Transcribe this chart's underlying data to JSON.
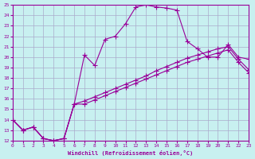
{
  "xlabel": "Windchill (Refroidissement éolien,°C)",
  "bg_color": "#c8f0f0",
  "grid_color": "#aaaacc",
  "line_color": "#990099",
  "xlim": [
    0,
    23
  ],
  "ylim": [
    12,
    25
  ],
  "xticks": [
    0,
    1,
    2,
    3,
    4,
    5,
    6,
    7,
    8,
    9,
    10,
    11,
    12,
    13,
    14,
    15,
    16,
    17,
    18,
    19,
    20,
    21,
    22,
    23
  ],
  "yticks": [
    12,
    13,
    14,
    15,
    16,
    17,
    18,
    19,
    20,
    21,
    22,
    23,
    24,
    25
  ],
  "curve1_x": [
    0,
    1,
    2,
    3,
    4,
    5,
    6,
    7,
    8,
    9,
    10,
    11,
    12,
    13,
    14,
    15,
    16,
    17,
    18,
    19,
    20,
    21,
    22,
    23
  ],
  "curve1_y": [
    14,
    13,
    13.3,
    12.2,
    12.0,
    12.2,
    15.5,
    20.2,
    19.2,
    21.7,
    22.0,
    23.2,
    24.8,
    25.0,
    24.8,
    24.7,
    24.5,
    21.5,
    20.8,
    20.0,
    20.0,
    21.2,
    20.0,
    19.8
  ],
  "curve2_x": [
    0,
    1,
    2,
    3,
    4,
    5,
    6,
    7,
    8,
    9,
    10,
    11,
    12,
    13,
    14,
    15,
    16,
    17,
    18,
    19,
    20,
    21,
    22,
    23
  ],
  "curve2_y": [
    14,
    13,
    13.3,
    12.2,
    12.0,
    12.2,
    15.5,
    15.8,
    16.2,
    16.6,
    17.0,
    17.4,
    17.8,
    18.2,
    18.7,
    19.1,
    19.5,
    19.9,
    20.2,
    20.5,
    20.8,
    21.0,
    19.8,
    18.8
  ],
  "curve3_x": [
    0,
    1,
    2,
    3,
    4,
    5,
    6,
    7,
    8,
    9,
    10,
    11,
    12,
    13,
    14,
    15,
    16,
    17,
    18,
    19,
    20,
    21,
    22,
    23
  ],
  "curve3_y": [
    14,
    13,
    13.3,
    12.2,
    12.0,
    12.2,
    15.5,
    15.5,
    15.9,
    16.3,
    16.7,
    17.1,
    17.5,
    17.9,
    18.3,
    18.7,
    19.1,
    19.5,
    19.8,
    20.1,
    20.4,
    20.7,
    19.5,
    18.5
  ]
}
